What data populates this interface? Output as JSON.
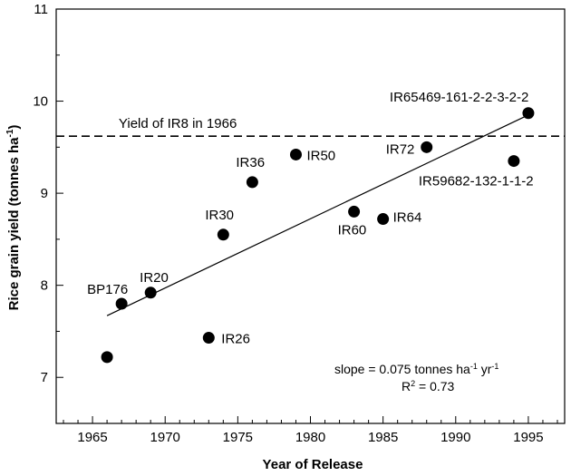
{
  "chart_data": {
    "type": "scatter",
    "xlabel": "Year of Release",
    "ylabel": "Rice grain yield (tonnes ha",
    "ylabel_sup": "-1",
    "ylabel_close": ")",
    "xlim": [
      1962.5,
      1997.5
    ],
    "ylim": [
      6.5,
      11
    ],
    "x_ticks": [
      1965,
      1970,
      1975,
      1980,
      1985,
      1990,
      1995
    ],
    "y_ticks": [
      7,
      8,
      9,
      10,
      11
    ],
    "points": [
      {
        "x": 1966,
        "y": 7.22,
        "label": ""
      },
      {
        "x": 1967,
        "y": 7.8,
        "label": "BP176"
      },
      {
        "x": 1969,
        "y": 7.92,
        "label": "IR20"
      },
      {
        "x": 1973,
        "y": 7.43,
        "label": "IR26"
      },
      {
        "x": 1974,
        "y": 8.55,
        "label": "IR30"
      },
      {
        "x": 1976,
        "y": 9.12,
        "label": "IR36"
      },
      {
        "x": 1979,
        "y": 9.42,
        "label": "IR50"
      },
      {
        "x": 1983,
        "y": 8.8,
        "label": "IR60"
      },
      {
        "x": 1985,
        "y": 8.72,
        "label": "IR64"
      },
      {
        "x": 1988,
        "y": 9.5,
        "label": "IR72"
      },
      {
        "x": 1994,
        "y": 9.35,
        "label": "IR59682-132-1-1-2"
      },
      {
        "x": 1995,
        "y": 9.87,
        "label": "IR65469-161-2-2-3-2-2"
      }
    ],
    "trend_line": {
      "x": [
        1966,
        1995
      ],
      "y": [
        7.67,
        9.85
      ]
    },
    "reference_line": {
      "y": 9.62,
      "label": "Yield of IR8 in 1966"
    },
    "annotation": {
      "slope_prefix": "slope = 0.075 tonnes ha",
      "slope_sup1": "-1",
      "slope_mid": " yr",
      "slope_sup2": "-1",
      "r2_prefix": "R",
      "r2_sup": "2",
      "r2_suffix": " = 0.73"
    }
  }
}
